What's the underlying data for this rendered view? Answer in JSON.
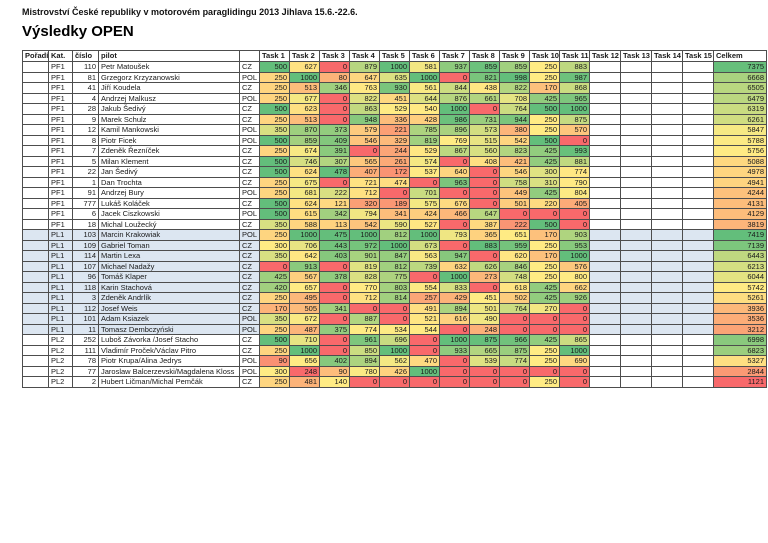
{
  "title": "Mistrovství České republiky v motorovém paraglidingu 2013 Jihlava 15.6.-22.6.",
  "heading": "Výsledky OPEN",
  "colors": {
    "scale_min": "#F8696B",
    "scale_mid": "#FFEB84",
    "scale_max": "#63BE7B",
    "row_highlight_pl1": "#DCE6F1",
    "grid": "#4D4D4D",
    "text": "#111111"
  },
  "table": {
    "headers": [
      "Pořadí",
      "Kat.",
      "číslo",
      "pilot",
      "",
      "Task 1",
      "Task 2",
      "Task 3",
      "Task 4",
      "Task 5",
      "Task 6",
      "Task 7",
      "Task 8",
      "Task 9",
      "Task 10",
      "Task 11",
      "Task 12",
      "Task 13",
      "Task 14",
      "Task 15",
      "Celkem"
    ],
    "rows": [
      {
        "poradi": "",
        "kat": "PF1",
        "cislo": "110",
        "pilot": "Petr Matoušek",
        "country": "CZ",
        "tasks": [
          500,
          627,
          0,
          879,
          1000,
          581,
          937,
          859,
          859,
          250,
          883
        ],
        "celkem": 7375
      },
      {
        "poradi": "",
        "kat": "PF1",
        "cislo": "81",
        "pilot": "Grzegorz Krzyzanowski",
        "country": "POL",
        "tasks": [
          250,
          1000,
          80,
          647,
          635,
          1000,
          0,
          821,
          998,
          250,
          987
        ],
        "celkem": 6668
      },
      {
        "poradi": "",
        "kat": "PF1",
        "cislo": "41",
        "pilot": "Jiří Koudela",
        "country": "CZ",
        "tasks": [
          250,
          513,
          346,
          763,
          930,
          561,
          844,
          438,
          822,
          170,
          868
        ],
        "celkem": 6505
      },
      {
        "poradi": "",
        "kat": "PF1",
        "cislo": "4",
        "pilot": "Andrzej Malkusz",
        "country": "POL",
        "tasks": [
          250,
          677,
          0,
          822,
          451,
          644,
          876,
          661,
          708,
          425,
          965
        ],
        "celkem": 6479
      },
      {
        "poradi": "",
        "kat": "PF1",
        "cislo": "28",
        "pilot": "Jakub Šedivý",
        "country": "CZ",
        "tasks": [
          500,
          623,
          0,
          863,
          529,
          540,
          1000,
          0,
          764,
          500,
          1000
        ],
        "celkem": 6319
      },
      {
        "poradi": "",
        "kat": "PF1",
        "cislo": "9",
        "pilot": "Marek Schulz",
        "country": "CZ",
        "tasks": [
          250,
          513,
          0,
          948,
          336,
          428,
          986,
          731,
          944,
          250,
          875
        ],
        "celkem": 6261
      },
      {
        "poradi": "",
        "kat": "PF1",
        "cislo": "12",
        "pilot": "Kamil Mankowski",
        "country": "POL",
        "tasks": [
          350,
          870,
          373,
          579,
          221,
          785,
          896,
          573,
          380,
          250,
          570
        ],
        "celkem": 5847
      },
      {
        "poradi": "",
        "kat": "PF1",
        "cislo": "8",
        "pilot": "Piotr Ficek",
        "country": "POL",
        "tasks": [
          500,
          859,
          409,
          546,
          329,
          819,
          769,
          515,
          542,
          500,
          0
        ],
        "celkem": 5788
      },
      {
        "poradi": "",
        "kat": "PF1",
        "cislo": "7",
        "pilot": "Zdeněk Řezníček",
        "country": "CZ",
        "tasks": [
          250,
          674,
          391,
          0,
          244,
          529,
          867,
          560,
          823,
          425,
          993
        ],
        "celkem": 5756
      },
      {
        "poradi": "",
        "kat": "PF1",
        "cislo": "5",
        "pilot": "Milan Klement",
        "country": "CZ",
        "tasks": [
          500,
          746,
          307,
          565,
          261,
          574,
          0,
          408,
          421,
          425,
          881
        ],
        "celkem": 5088
      },
      {
        "poradi": "",
        "kat": "PF1",
        "cislo": "22",
        "pilot": "Jan Šedivý",
        "country": "CZ",
        "tasks": [
          500,
          624,
          478,
          407,
          172,
          537,
          640,
          0,
          546,
          300,
          774
        ],
        "celkem": 4978
      },
      {
        "poradi": "",
        "kat": "PF1",
        "cislo": "1",
        "pilot": "Dan Trochta",
        "country": "CZ",
        "tasks": [
          250,
          675,
          0,
          721,
          474,
          0,
          963,
          0,
          758,
          310,
          790
        ],
        "celkem": 4941
      },
      {
        "poradi": "",
        "kat": "PF1",
        "cislo": "91",
        "pilot": "Andrzej Bury",
        "country": "POL",
        "tasks": [
          250,
          681,
          222,
          712,
          0,
          701,
          0,
          0,
          449,
          425,
          804
        ],
        "celkem": 4244
      },
      {
        "poradi": "",
        "kat": "PF1",
        "cislo": "777",
        "pilot": "Lukáš Koláček",
        "country": "CZ",
        "tasks": [
          500,
          624,
          121,
          320,
          189,
          575,
          676,
          0,
          501,
          220,
          405
        ],
        "celkem": 4131
      },
      {
        "poradi": "",
        "kat": "PF1",
        "cislo": "6",
        "pilot": "Jacek Ciszkowski",
        "country": "POL",
        "tasks": [
          500,
          615,
          342,
          794,
          341,
          424,
          466,
          647,
          0,
          0,
          0
        ],
        "celkem": 4129
      },
      {
        "poradi": "",
        "kat": "PF1",
        "cislo": "18",
        "pilot": "Michal Loužecký",
        "country": "CZ",
        "tasks": [
          350,
          588,
          113,
          542,
          590,
          527,
          0,
          387,
          222,
          500,
          0
        ],
        "celkem": 3819
      },
      {
        "poradi": "",
        "kat": "PL1",
        "cislo": "103",
        "pilot": "Marcin Krakowiak",
        "country": "POL",
        "tasks": [
          250,
          1000,
          475,
          1000,
          812,
          1000,
          793,
          365,
          651,
          170,
          903
        ],
        "celkem": 7419
      },
      {
        "poradi": "",
        "kat": "PL1",
        "cislo": "109",
        "pilot": "Gabriel Toman",
        "country": "CZ",
        "tasks": [
          300,
          706,
          443,
          972,
          1000,
          673,
          0,
          883,
          959,
          250,
          953
        ],
        "celkem": 7139
      },
      {
        "poradi": "",
        "kat": "PL1",
        "cislo": "114",
        "pilot": "Martin Lexa",
        "country": "CZ",
        "tasks": [
          350,
          642,
          403,
          901,
          847,
          563,
          947,
          0,
          620,
          170,
          1000
        ],
        "celkem": 6443
      },
      {
        "poradi": "",
        "kat": "PL1",
        "cislo": "107",
        "pilot": "Michael Nadažy",
        "country": "CZ",
        "tasks": [
          0,
          913,
          0,
          819,
          812,
          739,
          632,
          626,
          846,
          250,
          576
        ],
        "celkem": 6213
      },
      {
        "poradi": "",
        "kat": "PL1",
        "cislo": "96",
        "pilot": "Tomáš Klaper",
        "country": "CZ",
        "tasks": [
          425,
          567,
          378,
          828,
          775,
          0,
          1000,
          273,
          748,
          250,
          800
        ],
        "celkem": 6044
      },
      {
        "poradi": "",
        "kat": "PL1",
        "cislo": "118",
        "pilot": "Karin Stachová",
        "country": "CZ",
        "tasks": [
          420,
          657,
          0,
          770,
          803,
          554,
          833,
          0,
          618,
          425,
          662
        ],
        "celkem": 5742
      },
      {
        "poradi": "",
        "kat": "PL1",
        "cislo": "3",
        "pilot": "Zdeněk Andrlík",
        "country": "CZ",
        "tasks": [
          250,
          495,
          0,
          712,
          814,
          257,
          429,
          451,
          502,
          425,
          926
        ],
        "celkem": 5261
      },
      {
        "poradi": "",
        "kat": "PL1",
        "cislo": "112",
        "pilot": "Josef Weis",
        "country": "CZ",
        "tasks": [
          170,
          505,
          341,
          0,
          0,
          491,
          894,
          501,
          764,
          270,
          0
        ],
        "celkem": 3936
      },
      {
        "poradi": "",
        "kat": "PL1",
        "cislo": "101",
        "pilot": "Adam Ksiazek",
        "country": "POL",
        "tasks": [
          350,
          672,
          0,
          887,
          0,
          521,
          616,
          490,
          0,
          0,
          0
        ],
        "celkem": 3536
      },
      {
        "poradi": "",
        "kat": "PL1",
        "cislo": "11",
        "pilot": "Tomasz Dembczyński",
        "country": "POL",
        "tasks": [
          250,
          487,
          375,
          774,
          534,
          544,
          0,
          248,
          0,
          0,
          0
        ],
        "celkem": 3212
      },
      {
        "poradi": "",
        "kat": "PL2",
        "cislo": "252",
        "pilot": "Luboš Závorka /Josef Stacho",
        "country": "CZ",
        "tasks": [
          500,
          710,
          0,
          961,
          696,
          0,
          1000,
          875,
          966,
          425,
          865
        ],
        "celkem": 6998
      },
      {
        "poradi": "",
        "kat": "PL2",
        "cislo": "111",
        "pilot": "Vladimír Proček/Václav Pitro",
        "country": "CZ",
        "tasks": [
          250,
          1000,
          0,
          850,
          1000,
          0,
          933,
          665,
          875,
          250,
          1000
        ],
        "celkem": 6823
      },
      {
        "poradi": "",
        "kat": "PL2",
        "cislo": "78",
        "pilot": "Piotr Krupa/Alina Jedrys",
        "country": "POL",
        "tasks": [
          90,
          656,
          402,
          894,
          562,
          470,
          0,
          539,
          774,
          250,
          690
        ],
        "celkem": 5327
      },
      {
        "poradi": "",
        "kat": "PL2",
        "cislo": "77",
        "pilot": "Jaroslaw Balcerzevski/Magdalena Kloss",
        "country": "POL",
        "tasks": [
          300,
          248,
          90,
          780,
          426,
          1000,
          0,
          0,
          0,
          0,
          0
        ],
        "celkem": 2844
      },
      {
        "poradi": "",
        "kat": "PL2",
        "cislo": "2",
        "pilot": "Hubert Ličman/Michal Pemčák",
        "country": "CZ",
        "tasks": [
          250,
          481,
          140,
          0,
          0,
          0,
          0,
          0,
          0,
          250,
          0
        ],
        "celkem": 1121
      }
    ]
  }
}
